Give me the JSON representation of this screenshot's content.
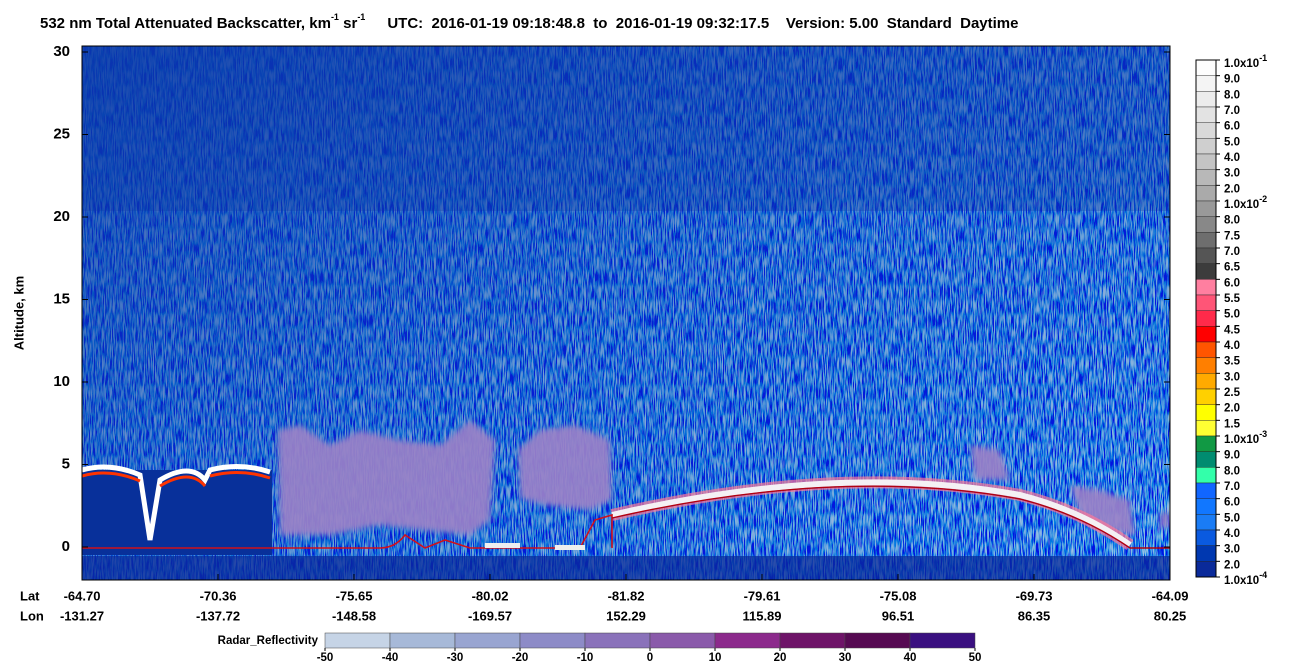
{
  "chart_data": {
    "type": "heatmap",
    "title": "532 nm Total Attenuated Backscatter, km",
    "title_unit_exp_1": "-1",
    "title_unit_2": " sr",
    "title_unit_exp_2": "-1",
    "subtitle": "UTC:  2016-01-19 09:18:48.8  to  2016-01-19 09:32:17.5    Version: 5.00  Standard  Daytime",
    "ylabel": "Altitude, km",
    "ylim": [
      -2,
      30
    ],
    "yticks": [
      0,
      5,
      10,
      15,
      20,
      25,
      30
    ],
    "lat_label": "Lat",
    "lat": [
      "-64.70",
      "-70.36",
      "-75.65",
      "-80.02",
      "-81.82",
      "-79.61",
      "-75.08",
      "-69.73",
      "-64.09"
    ],
    "lon_label": "Lon",
    "lon": [
      "-131.27",
      "-137.72",
      "-148.58",
      "-169.57",
      "152.29",
      "115.89",
      "96.51",
      "86.35",
      "80.25"
    ],
    "backscatter_colorbar": {
      "ticks": [
        {
          "value": 0.1,
          "label": "1.0x10",
          "exp": "-1"
        },
        {
          "value": 0.09,
          "label": "9.0"
        },
        {
          "value": 0.08,
          "label": "8.0"
        },
        {
          "value": 0.07,
          "label": "7.0"
        },
        {
          "value": 0.06,
          "label": "6.0"
        },
        {
          "value": 0.05,
          "label": "5.0"
        },
        {
          "value": 0.04,
          "label": "4.0"
        },
        {
          "value": 0.03,
          "label": "3.0"
        },
        {
          "value": 0.02,
          "label": "2.0"
        },
        {
          "value": 0.01,
          "label": "1.0x10",
          "exp": "-2"
        },
        {
          "value": 0.008,
          "label": "8.0"
        },
        {
          "value": 0.0075,
          "label": "7.5"
        },
        {
          "value": 0.007,
          "label": "7.0"
        },
        {
          "value": 0.0065,
          "label": "6.5"
        },
        {
          "value": 0.006,
          "label": "6.0"
        },
        {
          "value": 0.0055,
          "label": "5.5"
        },
        {
          "value": 0.005,
          "label": "5.0"
        },
        {
          "value": 0.0045,
          "label": "4.5"
        },
        {
          "value": 0.004,
          "label": "4.0"
        },
        {
          "value": 0.0035,
          "label": "3.5"
        },
        {
          "value": 0.003,
          "label": "3.0"
        },
        {
          "value": 0.0025,
          "label": "2.5"
        },
        {
          "value": 0.002,
          "label": "2.0"
        },
        {
          "value": 0.0015,
          "label": "1.5"
        },
        {
          "value": 0.001,
          "label": "1.0x10",
          "exp": "-3"
        },
        {
          "value": 0.0009,
          "label": "9.0"
        },
        {
          "value": 0.0008,
          "label": "8.0"
        },
        {
          "value": 0.0007,
          "label": "7.0"
        },
        {
          "value": 0.0006,
          "label": "6.0"
        },
        {
          "value": 0.0005,
          "label": "5.0"
        },
        {
          "value": 0.0004,
          "label": "4.0"
        },
        {
          "value": 0.0003,
          "label": "3.0"
        },
        {
          "value": 0.0002,
          "label": "2.0"
        },
        {
          "value": 0.0001,
          "label": "1.0x10",
          "exp": "-4"
        }
      ],
      "colors": [
        "#fdfdfd",
        "#f4f4f4",
        "#ececec",
        "#e3e3e3",
        "#d9d9d9",
        "#cfcfcf",
        "#c4c4c4",
        "#b8b8b8",
        "#aaaaaa",
        "#999999",
        "#888888",
        "#6e6e6e",
        "#555555",
        "#3c3c3c",
        "#ff7fa0",
        "#ff5577",
        "#ff2a4a",
        "#ff0000",
        "#ff5500",
        "#ff7f00",
        "#ffaa00",
        "#ffd000",
        "#ffff00",
        "#ffff33",
        "#119944",
        "#008c70",
        "#33ffaa",
        "#1166ff",
        "#1177ff",
        "#1a7cf5",
        "#0a5ae0",
        "#0038b0",
        "#0a2a9a"
      ]
    },
    "radar_colorbar": {
      "label": "Radar_Reflectivity",
      "ticks": [
        -50,
        -40,
        -30,
        -20,
        -10,
        0,
        10,
        20,
        30,
        40,
        50
      ],
      "colors": [
        "#c6d4e6",
        "#a7b9d8",
        "#99a5d1",
        "#8d8bc7",
        "#8a72ba",
        "#8a5aaa",
        "#8c2a8c",
        "#6e1468",
        "#560a52",
        "#3a1080"
      ]
    }
  }
}
